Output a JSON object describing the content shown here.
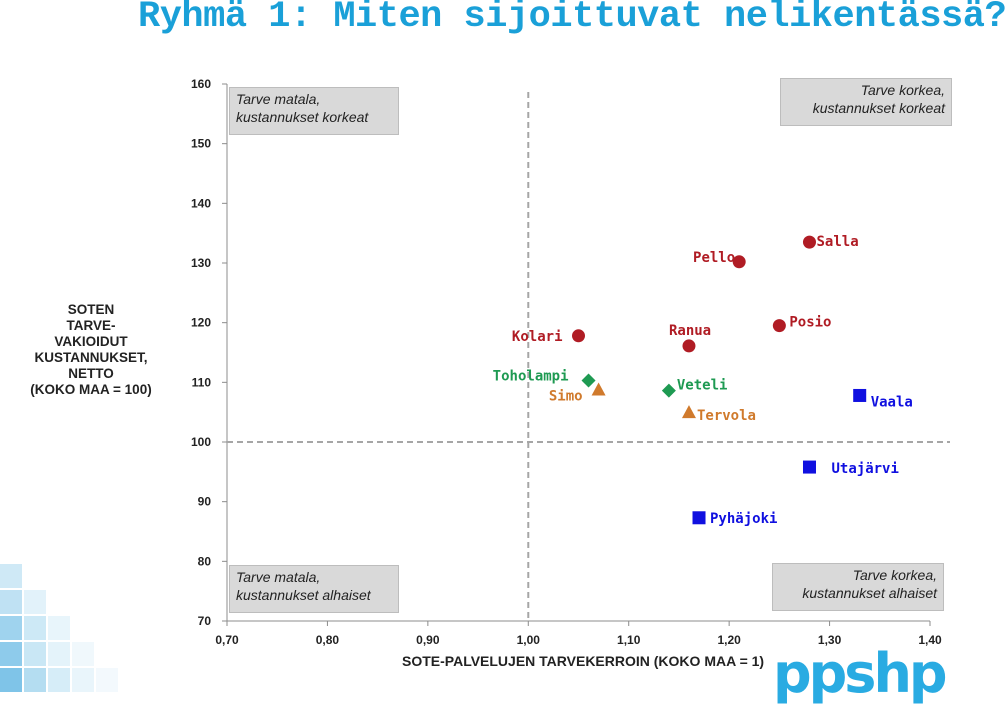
{
  "title": "Ryhmä 1: Miten sijoittuvat nelikentässä?",
  "colors": {
    "title": "#1aa0d8",
    "red": "#b01c24",
    "green": "#1e9a52",
    "orange": "#d07a2c",
    "blue": "#1010e0",
    "logo": "#29abe2",
    "gridline": "#a6a6a6"
  },
  "quadrants": {
    "top_left": {
      "line1": "Tarve matala,",
      "line2": "kustannukset korkeat"
    },
    "top_right": {
      "line1": "Tarve korkea,",
      "line2": "kustannukset korkeat"
    },
    "bottom_left": {
      "line1": "Tarve matala,",
      "line2": "kustannukset alhaiset"
    },
    "bottom_right": {
      "line1": "Tarve korkea,",
      "line2": "kustannukset alhaiset"
    }
  },
  "logo": {
    "text": "ppshp"
  },
  "chart_data": {
    "type": "scatter",
    "xlabel": "SOTE-PALVELUJEN TARVEKERROIN (KOKO MAA = 1)",
    "ylabel_lines": [
      "SOTEN",
      "TARVE-",
      "VAKIOIDUT",
      "KUSTANNUKSET,",
      "NETTO",
      "(KOKO MAA = 100)"
    ],
    "xlim": [
      0.7,
      1.4
    ],
    "ylim": [
      70,
      160
    ],
    "x_ticks": [
      "0,70",
      "0,80",
      "0,90",
      "1,00",
      "1,10",
      "1,20",
      "1,30",
      "1,40"
    ],
    "y_ticks": [
      "70",
      "80",
      "90",
      "100",
      "110",
      "120",
      "130",
      "140",
      "150",
      "160"
    ],
    "reference_lines": {
      "x": 1.0,
      "y": 100
    },
    "grid": false,
    "points": [
      {
        "name": "Salla",
        "x": 1.28,
        "y": 133.5,
        "marker": "circle",
        "color": "#b01c24"
      },
      {
        "name": "Pello",
        "x": 1.21,
        "y": 130.2,
        "marker": "circle",
        "color": "#b01c24"
      },
      {
        "name": "Kolari",
        "x": 1.05,
        "y": 117.8,
        "marker": "circle",
        "color": "#b01c24"
      },
      {
        "name": "Ranua",
        "x": 1.16,
        "y": 116.1,
        "marker": "circle",
        "color": "#b01c24"
      },
      {
        "name": "Posio",
        "x": 1.25,
        "y": 119.5,
        "marker": "circle",
        "color": "#b01c24"
      },
      {
        "name": "Toholampi",
        "x": 1.06,
        "y": 110.3,
        "marker": "diamond",
        "color": "#1e9a52"
      },
      {
        "name": "Simo",
        "x": 1.07,
        "y": 108.8,
        "marker": "triangle",
        "color": "#d07a2c"
      },
      {
        "name": "Veteli",
        "x": 1.14,
        "y": 108.6,
        "marker": "diamond",
        "color": "#1e9a52"
      },
      {
        "name": "Tervola",
        "x": 1.16,
        "y": 105.0,
        "marker": "triangle",
        "color": "#d07a2c"
      },
      {
        "name": "Vaala",
        "x": 1.33,
        "y": 107.8,
        "marker": "square",
        "color": "#1010e0"
      },
      {
        "name": "Utajärvi",
        "x": 1.28,
        "y": 95.8,
        "marker": "square",
        "color": "#1010e0"
      },
      {
        "name": "Pyhäjoki",
        "x": 1.17,
        "y": 87.3,
        "marker": "square",
        "color": "#1010e0"
      }
    ]
  }
}
